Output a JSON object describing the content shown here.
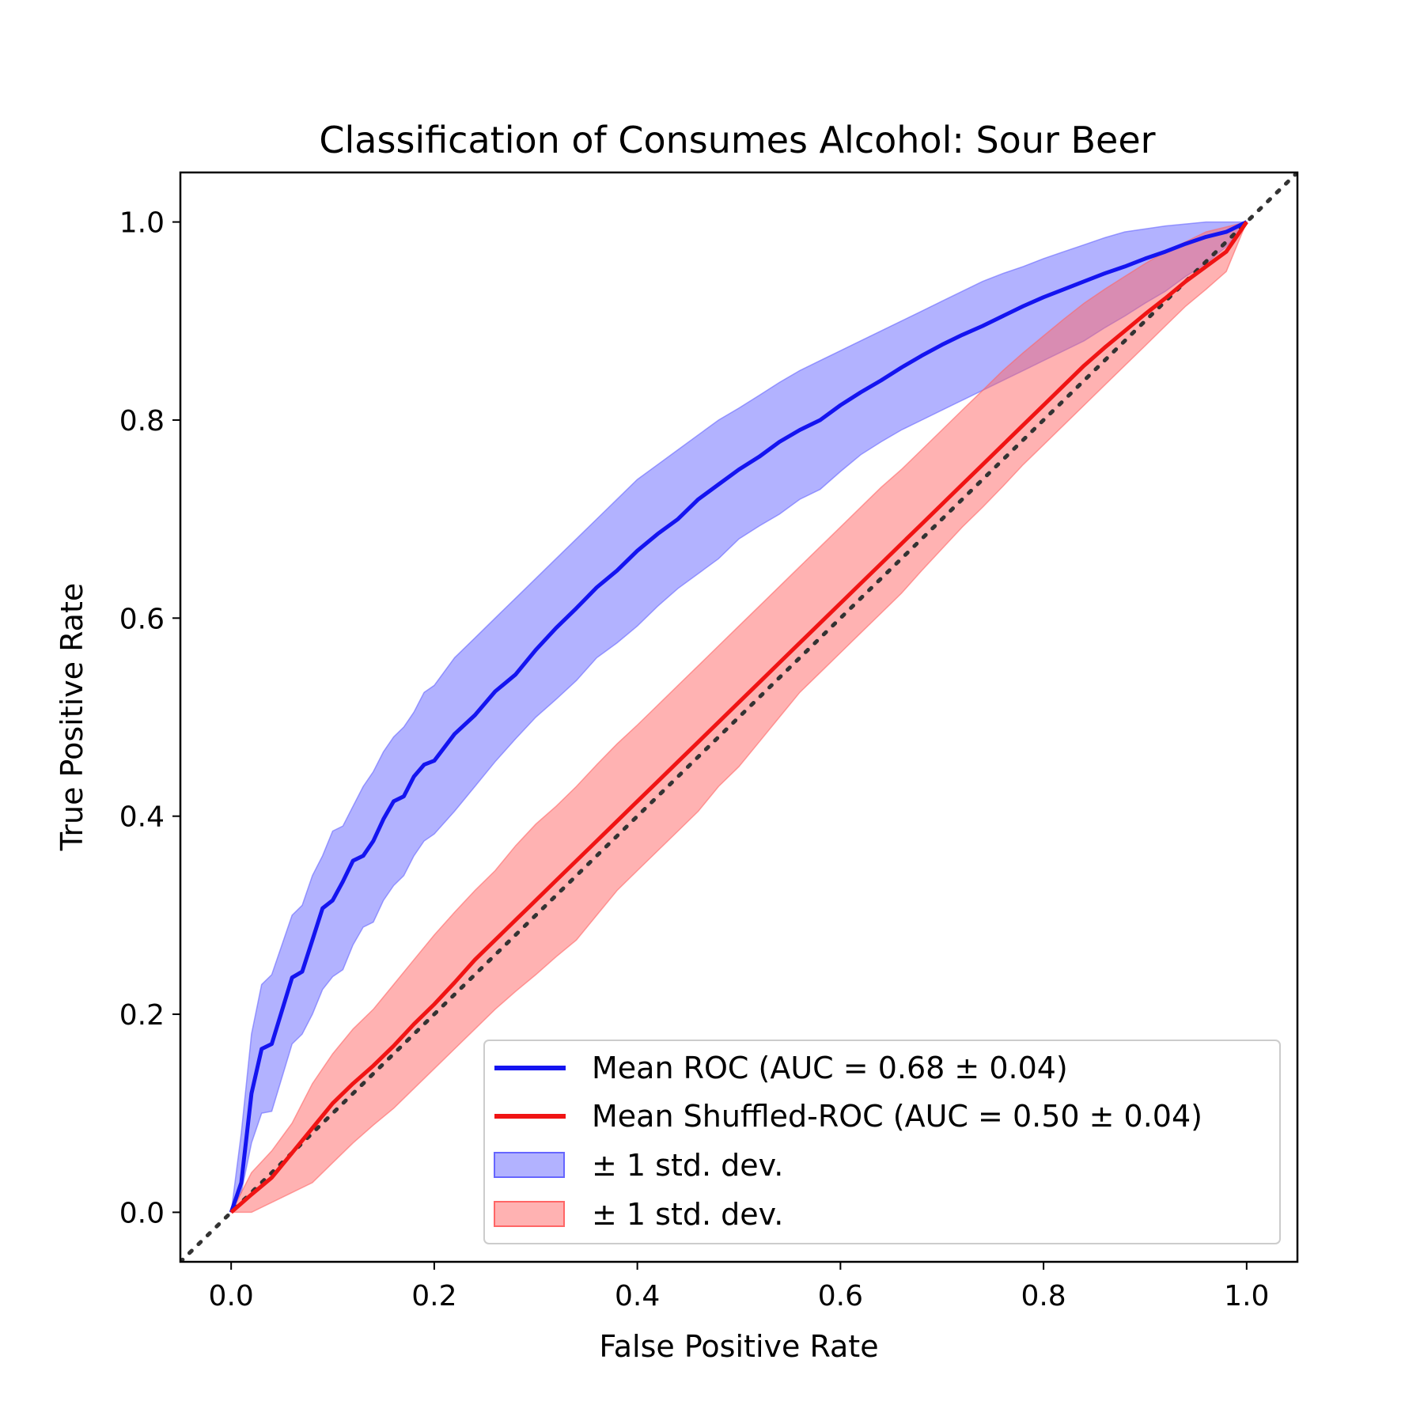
{
  "chart_data": {
    "type": "line",
    "title": "Classification of Consumes Alcohol: Sour Beer",
    "xlabel": "False Positive Rate",
    "ylabel": "True Positive Rate",
    "xlim": [
      -0.05,
      1.05
    ],
    "ylim": [
      -0.05,
      1.05
    ],
    "grid": false,
    "legend_position": "lower-right",
    "x_ticks": [
      {
        "value": 0.0,
        "label": "0.0"
      },
      {
        "value": 0.2,
        "label": "0.2"
      },
      {
        "value": 0.4,
        "label": "0.4"
      },
      {
        "value": 0.6,
        "label": "0.6"
      },
      {
        "value": 0.8,
        "label": "0.8"
      },
      {
        "value": 1.0,
        "label": "1.0"
      }
    ],
    "y_ticks": [
      {
        "value": 0.0,
        "label": "0.0"
      },
      {
        "value": 0.2,
        "label": "0.2"
      },
      {
        "value": 0.4,
        "label": "0.4"
      },
      {
        "value": 0.6,
        "label": "0.6"
      },
      {
        "value": 0.8,
        "label": "0.8"
      },
      {
        "value": 1.0,
        "label": "1.0"
      }
    ],
    "diagonal": {
      "x": [
        -0.05,
        1.05
      ],
      "y": [
        -0.05,
        1.05
      ],
      "color": "#333333",
      "style": "dotted"
    },
    "series": [
      {
        "name": "Mean ROC (AUC = 0.68 ± 0.04)",
        "color": "#1414f0",
        "x": [
          0,
          0.01,
          0.02,
          0.03,
          0.04,
          0.06,
          0.07,
          0.08,
          0.09,
          0.1,
          0.11,
          0.12,
          0.13,
          0.14,
          0.15,
          0.16,
          0.17,
          0.18,
          0.19,
          0.2,
          0.22,
          0.24,
          0.26,
          0.28,
          0.3,
          0.32,
          0.34,
          0.36,
          0.38,
          0.4,
          0.42,
          0.44,
          0.46,
          0.48,
          0.5,
          0.52,
          0.54,
          0.56,
          0.58,
          0.6,
          0.62,
          0.64,
          0.66,
          0.68,
          0.7,
          0.72,
          0.74,
          0.76,
          0.78,
          0.8,
          0.82,
          0.84,
          0.86,
          0.88,
          0.9,
          0.92,
          0.94,
          0.96,
          0.98,
          1.0
        ],
        "y": [
          0,
          0.03,
          0.12,
          0.165,
          0.17,
          0.237,
          0.243,
          0.275,
          0.307,
          0.315,
          0.334,
          0.355,
          0.36,
          0.375,
          0.397,
          0.415,
          0.42,
          0.44,
          0.452,
          0.456,
          0.483,
          0.502,
          0.526,
          0.543,
          0.568,
          0.59,
          0.61,
          0.631,
          0.648,
          0.668,
          0.685,
          0.7,
          0.72,
          0.735,
          0.75,
          0.763,
          0.778,
          0.79,
          0.8,
          0.815,
          0.828,
          0.84,
          0.853,
          0.865,
          0.876,
          0.886,
          0.895,
          0.905,
          0.915,
          0.924,
          0.932,
          0.94,
          0.948,
          0.955,
          0.963,
          0.97,
          0.978,
          0.985,
          0.99,
          1.0
        ],
        "band_label": "± 1 std. dev.",
        "band_color": "#6666ff",
        "lower": [
          0,
          0.02,
          0.07,
          0.1,
          0.102,
          0.17,
          0.18,
          0.2,
          0.225,
          0.238,
          0.245,
          0.27,
          0.288,
          0.293,
          0.315,
          0.33,
          0.34,
          0.36,
          0.375,
          0.382,
          0.405,
          0.43,
          0.455,
          0.478,
          0.5,
          0.518,
          0.537,
          0.56,
          0.575,
          0.592,
          0.612,
          0.63,
          0.645,
          0.66,
          0.68,
          0.693,
          0.705,
          0.72,
          0.73,
          0.748,
          0.765,
          0.778,
          0.79,
          0.8,
          0.81,
          0.82,
          0.83,
          0.84,
          0.85,
          0.86,
          0.87,
          0.88,
          0.893,
          0.905,
          0.918,
          0.93,
          0.945,
          0.958,
          0.975,
          1.0
        ],
        "upper": [
          0,
          0.08,
          0.18,
          0.23,
          0.24,
          0.3,
          0.31,
          0.34,
          0.36,
          0.385,
          0.39,
          0.41,
          0.43,
          0.445,
          0.465,
          0.48,
          0.49,
          0.505,
          0.525,
          0.532,
          0.56,
          0.58,
          0.6,
          0.62,
          0.64,
          0.66,
          0.68,
          0.7,
          0.72,
          0.74,
          0.755,
          0.77,
          0.785,
          0.8,
          0.812,
          0.825,
          0.838,
          0.85,
          0.86,
          0.87,
          0.88,
          0.89,
          0.9,
          0.91,
          0.92,
          0.93,
          0.94,
          0.948,
          0.955,
          0.963,
          0.97,
          0.977,
          0.984,
          0.99,
          0.993,
          0.996,
          0.998,
          1.0,
          1.0,
          1.0
        ]
      },
      {
        "name": "Mean Shuffled-ROC (AUC = 0.50 ± 0.04)",
        "color": "#f01414",
        "x": [
          0,
          0.02,
          0.04,
          0.06,
          0.08,
          0.1,
          0.12,
          0.14,
          0.16,
          0.18,
          0.2,
          0.22,
          0.24,
          0.26,
          0.28,
          0.3,
          0.32,
          0.34,
          0.36,
          0.38,
          0.4,
          0.42,
          0.44,
          0.46,
          0.48,
          0.5,
          0.52,
          0.54,
          0.56,
          0.58,
          0.6,
          0.62,
          0.64,
          0.66,
          0.68,
          0.7,
          0.72,
          0.74,
          0.76,
          0.78,
          0.8,
          0.82,
          0.84,
          0.86,
          0.88,
          0.9,
          0.92,
          0.94,
          0.96,
          0.98,
          1.0
        ],
        "y": [
          0,
          0.018,
          0.035,
          0.06,
          0.085,
          0.11,
          0.13,
          0.148,
          0.168,
          0.19,
          0.21,
          0.232,
          0.255,
          0.275,
          0.295,
          0.315,
          0.335,
          0.355,
          0.375,
          0.395,
          0.415,
          0.435,
          0.455,
          0.475,
          0.495,
          0.515,
          0.535,
          0.555,
          0.575,
          0.595,
          0.615,
          0.635,
          0.655,
          0.675,
          0.695,
          0.715,
          0.735,
          0.755,
          0.775,
          0.795,
          0.815,
          0.835,
          0.855,
          0.873,
          0.89,
          0.907,
          0.923,
          0.94,
          0.955,
          0.97,
          1.0
        ],
        "band_label": "± 1 std. dev.",
        "band_color": "#ff6666",
        "lower": [
          0,
          0.0,
          0.01,
          0.02,
          0.03,
          0.05,
          0.07,
          0.088,
          0.105,
          0.125,
          0.145,
          0.165,
          0.185,
          0.205,
          0.223,
          0.24,
          0.258,
          0.275,
          0.3,
          0.325,
          0.345,
          0.365,
          0.385,
          0.405,
          0.43,
          0.45,
          0.475,
          0.5,
          0.525,
          0.545,
          0.565,
          0.585,
          0.605,
          0.625,
          0.648,
          0.67,
          0.692,
          0.712,
          0.733,
          0.755,
          0.775,
          0.795,
          0.815,
          0.835,
          0.855,
          0.875,
          0.895,
          0.915,
          0.932,
          0.95,
          1.0
        ],
        "upper": [
          0,
          0.04,
          0.062,
          0.09,
          0.13,
          0.16,
          0.185,
          0.205,
          0.23,
          0.255,
          0.28,
          0.303,
          0.325,
          0.345,
          0.37,
          0.392,
          0.41,
          0.43,
          0.452,
          0.473,
          0.492,
          0.512,
          0.532,
          0.552,
          0.572,
          0.592,
          0.612,
          0.632,
          0.652,
          0.672,
          0.692,
          0.712,
          0.732,
          0.75,
          0.77,
          0.79,
          0.81,
          0.83,
          0.85,
          0.868,
          0.885,
          0.902,
          0.918,
          0.932,
          0.945,
          0.958,
          0.97,
          0.98,
          0.99,
          0.995,
          1.0
        ]
      }
    ]
  }
}
